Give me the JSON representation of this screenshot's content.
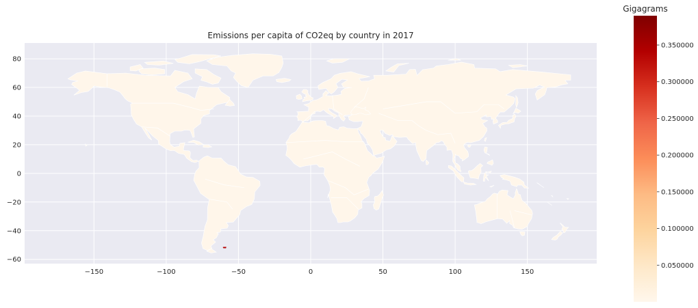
{
  "chart_data": {
    "type": "choropleth-map",
    "title": "Emissions per capita of CO2eq by country in 2017",
    "xlabel": "",
    "ylabel": "",
    "xlim": [
      -198,
      198
    ],
    "ylim": [
      -63,
      91
    ],
    "x_ticks": [
      -150,
      -100,
      -50,
      0,
      50,
      100,
      150
    ],
    "x_tick_labels": [
      "−150",
      "−100",
      "−50",
      "0",
      "50",
      "100",
      "150"
    ],
    "y_ticks": [
      -60,
      -40,
      -20,
      0,
      20,
      40,
      60,
      80
    ],
    "y_tick_labels": [
      "−60",
      "−40",
      "−20",
      "0",
      "20",
      "40",
      "60",
      "80"
    ],
    "grid": true,
    "background": "#eaeaf2",
    "colormap": "OrRd",
    "colorbar": {
      "title": "Gigagrams",
      "range": [
        0,
        0.39
      ],
      "ticks": [
        0.05,
        0.1,
        0.15,
        0.2,
        0.25,
        0.3,
        0.35
      ],
      "tick_labels": [
        "0.050000",
        "0.100000",
        "0.150000",
        "0.200000",
        "0.250000",
        "0.300000",
        "0.350000"
      ],
      "colors": [
        "#fff7ec",
        "#fee8c8",
        "#fdd49e",
        "#fdbb84",
        "#fc8d59",
        "#ef6548",
        "#d7301f",
        "#b30000",
        "#7f0000"
      ]
    },
    "default_fill": "#fff6ea",
    "highlights": [
      {
        "region": "Falkland Islands",
        "lon": -59.5,
        "lat": -51.8,
        "color": "#b30000"
      }
    ]
  }
}
